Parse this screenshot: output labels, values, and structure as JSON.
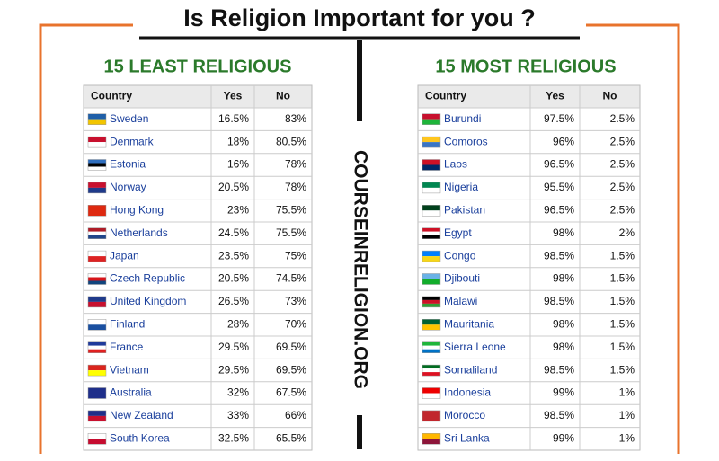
{
  "title": "Is Religion Important for you ?",
  "side_text": "COURSEINRELIGION.ORG",
  "left": {
    "heading": "15 LEAST RELIGIOUS",
    "columns": [
      "Country",
      "Yes",
      "No"
    ],
    "rows": [
      [
        "Sweden",
        "16.5%",
        "83%"
      ],
      [
        "Denmark",
        "18%",
        "80.5%"
      ],
      [
        "Estonia",
        "16%",
        "78%"
      ],
      [
        "Norway",
        "20.5%",
        "78%"
      ],
      [
        "Hong Kong",
        "23%",
        "75.5%"
      ],
      [
        "Netherlands",
        "24.5%",
        "75.5%"
      ],
      [
        "Japan",
        "23.5%",
        "75%"
      ],
      [
        "Czech Republic",
        "20.5%",
        "74.5%"
      ],
      [
        "United Kingdom",
        "26.5%",
        "73%"
      ],
      [
        "Finland",
        "28%",
        "70%"
      ],
      [
        "France",
        "29.5%",
        "69.5%"
      ],
      [
        "Vietnam",
        "29.5%",
        "69.5%"
      ],
      [
        "Australia",
        "32%",
        "67.5%"
      ],
      [
        "New Zealand",
        "33%",
        "66%"
      ],
      [
        "South Korea",
        "32.5%",
        "65.5%"
      ]
    ]
  },
  "right": {
    "heading": "15 MOST RELIGIOUS",
    "columns": [
      "Country",
      "Yes",
      "No"
    ],
    "rows": [
      [
        "Burundi",
        "97.5%",
        "2.5%"
      ],
      [
        "Comoros",
        "96%",
        "2.5%"
      ],
      [
        "Laos",
        "96.5%",
        "2.5%"
      ],
      [
        "Nigeria",
        "95.5%",
        "2.5%"
      ],
      [
        "Pakistan",
        "96.5%",
        "2.5%"
      ],
      [
        "Egypt",
        "98%",
        "2%"
      ],
      [
        "Congo",
        "98.5%",
        "1.5%"
      ],
      [
        "Djibouti",
        "98%",
        "1.5%"
      ],
      [
        "Malawi",
        "98.5%",
        "1.5%"
      ],
      [
        "Mauritania",
        "98%",
        "1.5%"
      ],
      [
        "Sierra Leone",
        "98%",
        "1.5%"
      ],
      [
        "Somaliland",
        "98.5%",
        "1.5%"
      ],
      [
        "Indonesia",
        "99%",
        "1%"
      ],
      [
        "Morocco",
        "98.5%",
        "1%"
      ],
      [
        "Sri Lanka",
        "99%",
        "1%"
      ]
    ]
  }
}
